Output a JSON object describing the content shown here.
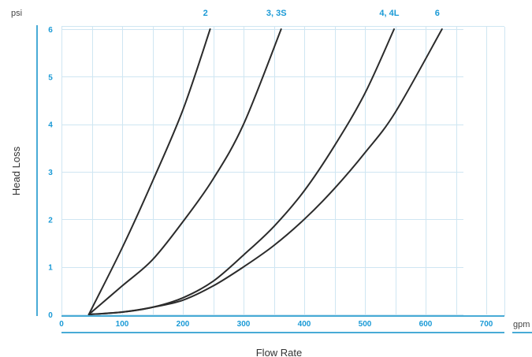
{
  "chart_data": {
    "type": "line",
    "xlabel": "Flow Rate",
    "ylabel": "Head Loss",
    "x_unit": "gpm",
    "y_unit": "psi",
    "xlim": [
      0,
      700
    ],
    "ylim": [
      0,
      6
    ],
    "x_ticks": [
      0,
      100,
      200,
      300,
      400,
      500,
      600,
      700
    ],
    "y_ticks": [
      0,
      1,
      2,
      3,
      4,
      5,
      6
    ],
    "grid": true,
    "series": [
      {
        "name": "2",
        "x": [
          45,
          100,
          150,
          200,
          245
        ],
        "y": [
          0,
          1.4,
          2.8,
          4.3,
          6.0
        ]
      },
      {
        "name": "3, 3S",
        "x": [
          45,
          100,
          150,
          200,
          250,
          300,
          362
        ],
        "y": [
          0,
          0.6,
          1.15,
          1.95,
          2.85,
          4.0,
          6.0
        ]
      },
      {
        "name": "4, 4L",
        "x": [
          45,
          100,
          150,
          200,
          250,
          300,
          350,
          400,
          450,
          500,
          548
        ],
        "y": [
          0,
          0.05,
          0.15,
          0.35,
          0.7,
          1.25,
          1.85,
          2.6,
          3.55,
          4.65,
          6.0
        ]
      },
      {
        "name": "6",
        "x": [
          45,
          100,
          150,
          200,
          250,
          300,
          350,
          400,
          450,
          500,
          550,
          627
        ],
        "y": [
          0,
          0.05,
          0.15,
          0.3,
          0.6,
          1.0,
          1.45,
          2.0,
          2.65,
          3.4,
          4.25,
          6.0
        ]
      }
    ],
    "colors": {
      "axis": "#0b8fc8",
      "tick_text": "#1a9ad6",
      "grid": "#cfe6f2",
      "line": "#2b2b2b"
    }
  }
}
